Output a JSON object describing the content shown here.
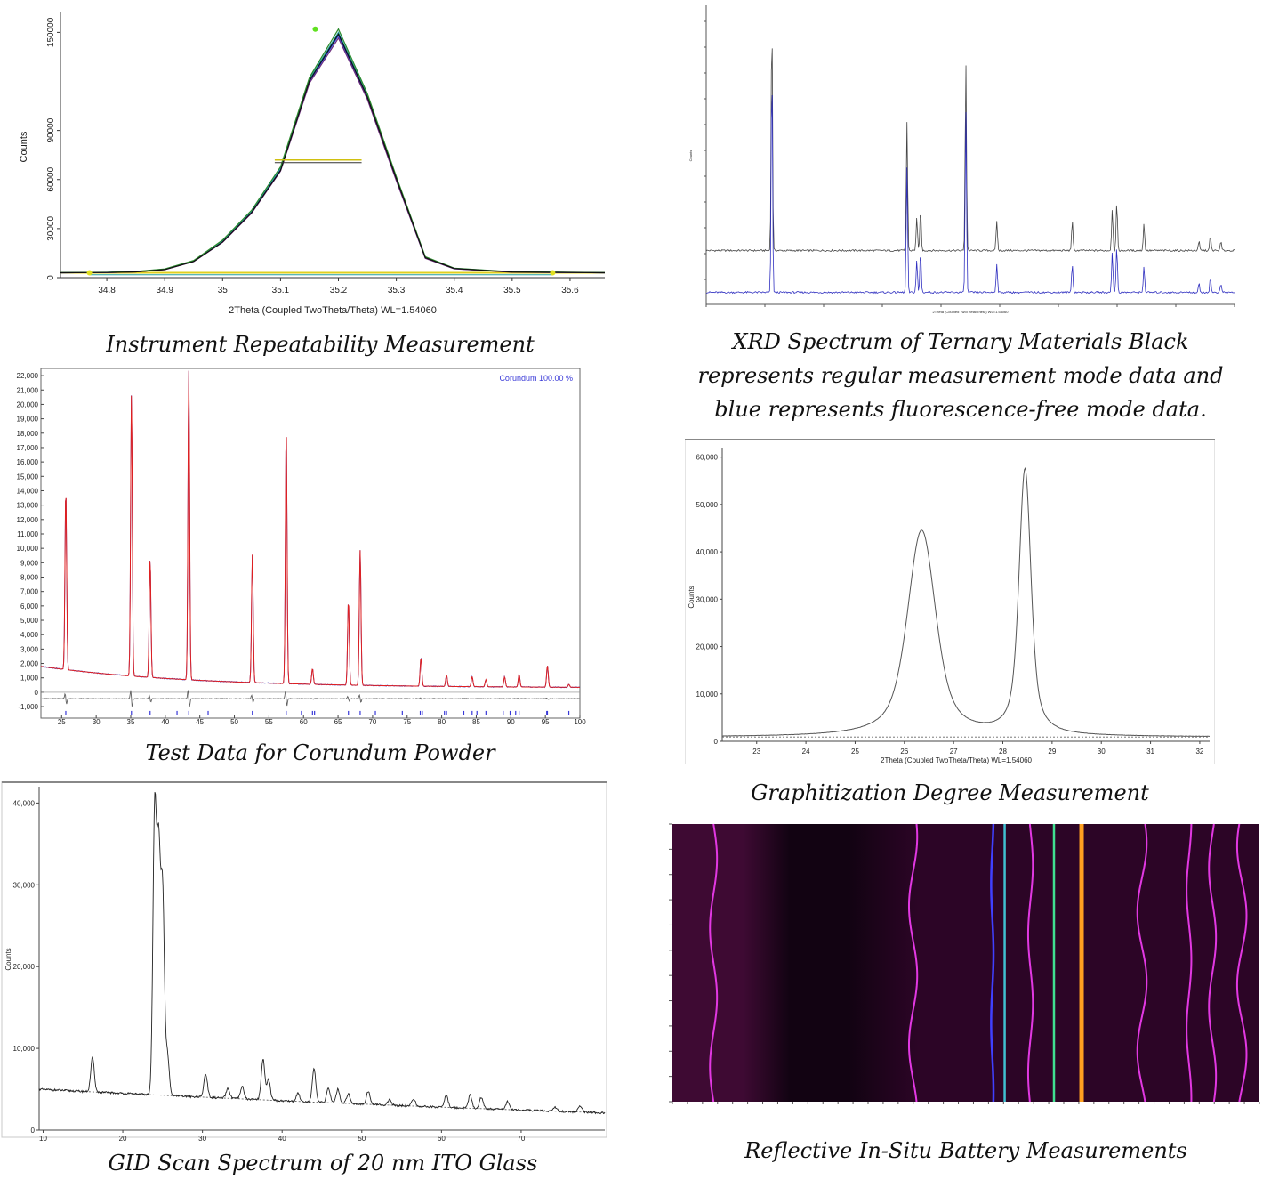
{
  "captions": {
    "c1": "Instrument Repeatability Measurement",
    "c2": "XRD Spectrum of Ternary Materials Black represents regular measurement mode data and blue represents fluorescence-free mode data.",
    "c3": "Test Data for Corundum Powder",
    "c4": "Graphitization Degree Measurement",
    "c5": "GID Scan Spectrum of 20 nm ITO Glass",
    "c6": "Reflective In-Situ Battery Measurements"
  },
  "chart_data": [
    {
      "id": "repeatability",
      "type": "line",
      "xlabel": "2Theta (Coupled TwoTheta/Theta) WL=1.54060",
      "ylabel": "Counts",
      "xlim": [
        34.72,
        35.66
      ],
      "ylim": [
        0,
        160000
      ],
      "xticks": [
        "34.8",
        "34.9",
        "35",
        "35.1",
        "35.2",
        "35.3",
        "35.4",
        "35.5",
        "35.6"
      ],
      "yticks": [
        "0",
        "30000",
        "60000",
        "90000",
        "150000"
      ],
      "x": [
        34.72,
        34.8,
        34.85,
        34.9,
        34.95,
        35.0,
        35.05,
        35.1,
        35.15,
        35.2,
        35.25,
        35.3,
        35.35,
        35.4,
        35.5,
        35.66
      ],
      "series": [
        {
          "values": [
            3000,
            3200,
            3600,
            5000,
            10000,
            22000,
            40000,
            66000,
            120000,
            148000,
            110000,
            60000,
            12000,
            5500,
            3400,
            3000
          ]
        },
        {
          "values": [
            3000,
            3200,
            3700,
            5200,
            10300,
            22600,
            40800,
            67000,
            121500,
            150000,
            111500,
            61000,
            12500,
            5700,
            3500,
            3000
          ]
        },
        {
          "values": [
            3000,
            3100,
            3500,
            4900,
            9800,
            21600,
            39400,
            65200,
            119000,
            146500,
            109000,
            59200,
            11800,
            5400,
            3300,
            3000
          ]
        },
        {
          "values": [
            3100,
            3300,
            3800,
            5300,
            10500,
            23000,
            41200,
            67800,
            122500,
            152000,
            112500,
            61800,
            12800,
            5800,
            3600,
            3100
          ]
        },
        {
          "values": [
            3000,
            3150,
            3550,
            4950,
            9900,
            21800,
            39800,
            65600,
            120500,
            149000,
            110500,
            60500,
            12200,
            5600,
            3450,
            3000
          ]
        }
      ],
      "fwhm_line_y": 72000,
      "marker_x": [
        34.77,
        35.57
      ],
      "colors": [
        "#1f3bd1",
        "#20a0a0",
        "#6b2a7a",
        "#2c8a2c",
        "#101010"
      ]
    },
    {
      "id": "ternary",
      "type": "line",
      "xlabel": "2Theta (Coupled TwoTheta/Theta) WL=1.54060",
      "ylabel": "Counts",
      "xlim": [
        10,
        80
      ],
      "ylim": [
        0,
        10000
      ],
      "series": [
        {
          "name": "regular",
          "color": "#444444",
          "offset": 1800
        },
        {
          "name": "fluorescence-free",
          "color": "#3030c0",
          "offset": 400
        }
      ],
      "peaks": [
        {
          "x": 18.7,
          "h": 7900
        },
        {
          "x": 36.6,
          "h": 4300
        },
        {
          "x": 37.9,
          "h": 1100
        },
        {
          "x": 38.4,
          "h": 1400
        },
        {
          "x": 44.4,
          "h": 6300
        },
        {
          "x": 48.5,
          "h": 1000
        },
        {
          "x": 58.5,
          "h": 1000
        },
        {
          "x": 63.8,
          "h": 1400
        },
        {
          "x": 64.4,
          "h": 1600
        },
        {
          "x": 68.0,
          "h": 900
        },
        {
          "x": 75.3,
          "h": 300
        },
        {
          "x": 76.8,
          "h": 500
        },
        {
          "x": 78.2,
          "h": 300
        }
      ]
    },
    {
      "id": "corundum",
      "type": "line",
      "legend": "Corundum   100.00 %",
      "xlim": [
        22,
        100
      ],
      "ylim": [
        -1800,
        22500
      ],
      "xticks": [
        "25",
        "30",
        "35",
        "40",
        "45",
        "50",
        "55",
        "60",
        "65",
        "70",
        "75",
        "80",
        "85",
        "90",
        "95",
        "100"
      ],
      "yticks": [
        "-1,000",
        "0",
        "1,000",
        "2,000",
        "3,000",
        "4,000",
        "5,000",
        "6,000",
        "7,000",
        "8,000",
        "9,000",
        "10,000",
        "11,000",
        "12,000",
        "13,000",
        "14,000",
        "15,000",
        "16,000",
        "17,000",
        "18,000",
        "19,000",
        "20,000",
        "21,000",
        "22,000"
      ],
      "peaks": [
        {
          "x": 25.6,
          "h": 12600
        },
        {
          "x": 35.1,
          "h": 19600
        },
        {
          "x": 37.8,
          "h": 8300
        },
        {
          "x": 43.4,
          "h": 21500
        },
        {
          "x": 52.6,
          "h": 8900
        },
        {
          "x": 57.5,
          "h": 17800
        },
        {
          "x": 61.3,
          "h": 1100
        },
        {
          "x": 66.5,
          "h": 5900
        },
        {
          "x": 68.2,
          "h": 9400
        },
        {
          "x": 77.0,
          "h": 2000
        },
        {
          "x": 80.7,
          "h": 800
        },
        {
          "x": 84.4,
          "h": 700
        },
        {
          "x": 86.4,
          "h": 500
        },
        {
          "x": 89.1,
          "h": 700
        },
        {
          "x": 91.2,
          "h": 900
        },
        {
          "x": 95.3,
          "h": 1500
        },
        {
          "x": 98.4,
          "h": 200
        }
      ],
      "reflections": [
        25.6,
        35.1,
        37.8,
        41.7,
        43.4,
        46.2,
        52.6,
        57.5,
        59.7,
        61.3,
        61.6,
        66.5,
        68.2,
        70.4,
        74.3,
        76.9,
        77.2,
        80.4,
        80.7,
        83.2,
        84.4,
        85.1,
        86.4,
        88.9,
        89.9,
        90.7,
        91.2,
        95.2,
        95.3,
        98.4
      ],
      "colors": {
        "calc": "#e02020",
        "obs": "#3030c0",
        "diff": "#606060",
        "refl": "#3838d8"
      }
    },
    {
      "id": "graphitization",
      "type": "line",
      "xlabel": "2Theta (Coupled TwoTheta/Theta) WL=1.54060",
      "ylabel": "Counts",
      "xlim": [
        22.3,
        32.2
      ],
      "ylim": [
        0,
        62000
      ],
      "xticks": [
        "23",
        "24",
        "25",
        "26",
        "27",
        "28",
        "29",
        "30",
        "31",
        "32"
      ],
      "yticks": [
        "0",
        "10,000",
        "20,000",
        "30,000",
        "40,000",
        "50,000",
        "60,000"
      ],
      "peaks": [
        {
          "x": 26.35,
          "h": 43500,
          "w": 0.38
        },
        {
          "x": 28.45,
          "h": 56000,
          "w": 0.16
        }
      ],
      "baseline": 900
    },
    {
      "id": "ito",
      "type": "line",
      "ylabel": "Counts",
      "xlim": [
        9.5,
        80.5
      ],
      "ylim": [
        0,
        42000
      ],
      "xticks": [
        "10",
        "20",
        "30",
        "40",
        "50",
        "60",
        "70"
      ],
      "yticks": [
        "0",
        "10,000",
        "20,000",
        "30,000",
        "40,000"
      ],
      "peaks": [
        {
          "x": 16.2,
          "h": 4200
        },
        {
          "x": 24.0,
          "h": 34500
        },
        {
          "x": 24.5,
          "h": 28800
        },
        {
          "x": 25.0,
          "h": 24500
        },
        {
          "x": 25.6,
          "h": 5000
        },
        {
          "x": 30.4,
          "h": 2900
        },
        {
          "x": 33.2,
          "h": 1200
        },
        {
          "x": 35.0,
          "h": 1500
        },
        {
          "x": 37.6,
          "h": 5000
        },
        {
          "x": 38.3,
          "h": 2500
        },
        {
          "x": 42.0,
          "h": 1000
        },
        {
          "x": 44.0,
          "h": 4000
        },
        {
          "x": 45.8,
          "h": 1800
        },
        {
          "x": 47.0,
          "h": 1700
        },
        {
          "x": 48.3,
          "h": 1200
        },
        {
          "x": 50.8,
          "h": 1600
        },
        {
          "x": 53.5,
          "h": 700
        },
        {
          "x": 56.5,
          "h": 900
        },
        {
          "x": 60.6,
          "h": 1500
        },
        {
          "x": 63.6,
          "h": 1600
        },
        {
          "x": 65.0,
          "h": 1400
        },
        {
          "x": 68.3,
          "h": 1000
        },
        {
          "x": 74.3,
          "h": 500
        },
        {
          "x": 77.4,
          "h": 800
        }
      ],
      "background_start": 5000,
      "background_end": 2100
    },
    {
      "id": "insitu",
      "type": "heatmap",
      "colors": {
        "bg_left": "#3e0a33",
        "bg_dark": "#120312",
        "bg_mid": "#2c0526",
        "line": "#e238e2",
        "blue": "#4040ff",
        "cyan": "#40c0d0",
        "green": "#40e090",
        "orange": "#ffa020"
      },
      "lines": [
        {
          "x": 0.07,
          "color": "line",
          "amp": 0.006
        },
        {
          "x": 0.41,
          "color": "line",
          "amp": 0.007
        },
        {
          "x": 0.545,
          "color": "blue",
          "amp": 0.002
        },
        {
          "x": 0.566,
          "color": "cyan",
          "amp": 0
        },
        {
          "x": 0.65,
          "color": "green",
          "amp": 0
        },
        {
          "x": 0.697,
          "color": "orange",
          "amp": 0
        },
        {
          "x": 0.61,
          "color": "line",
          "amp": 0.004
        },
        {
          "x": 0.8,
          "color": "line",
          "amp": 0.008
        },
        {
          "x": 0.88,
          "color": "line",
          "amp": 0.004
        },
        {
          "x": 0.92,
          "color": "line",
          "amp": 0.006
        },
        {
          "x": 0.97,
          "color": "line",
          "amp": 0.008
        }
      ]
    }
  ]
}
